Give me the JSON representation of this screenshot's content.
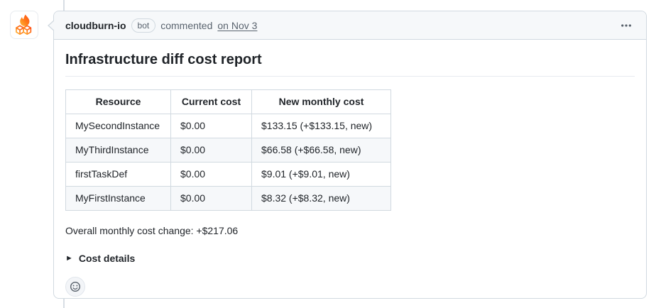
{
  "comment": {
    "author": "cloudburn-io",
    "badge": "bot",
    "action": "commented",
    "timestamp": "on Nov 3"
  },
  "report": {
    "title": "Infrastructure diff cost report",
    "table": {
      "headers": [
        "Resource",
        "Current cost",
        "New monthly cost"
      ],
      "rows": [
        [
          "MySecondInstance",
          "$0.00",
          "$133.15 (+$133.15, new)"
        ],
        [
          "MyThirdInstance",
          "$0.00",
          "$66.58 (+$66.58, new)"
        ],
        [
          "firstTaskDef",
          "$0.00",
          "$9.01 (+$9.01, new)"
        ],
        [
          "MyFirstInstance",
          "$0.00",
          "$8.32 (+$8.32, new)"
        ]
      ]
    },
    "summary": "Overall monthly cost change: +$217.06",
    "details_marker": "►",
    "details_label": "Cost details"
  },
  "icons": {
    "avatar": "cloudburn-flame-cubes-logo",
    "kebab": "kebab-horizontal-icon",
    "reaction": "smiley-icon"
  },
  "colors": {
    "header_bg": "#f6f8fa",
    "border": "#d1d9e0",
    "text": "#1f2328",
    "muted": "#59636e",
    "row_stripe": "#f6f8fa",
    "timeline_line": "#d8dee4",
    "brand_orange_start": "#ffb938",
    "brand_orange_end": "#ff4d17"
  }
}
